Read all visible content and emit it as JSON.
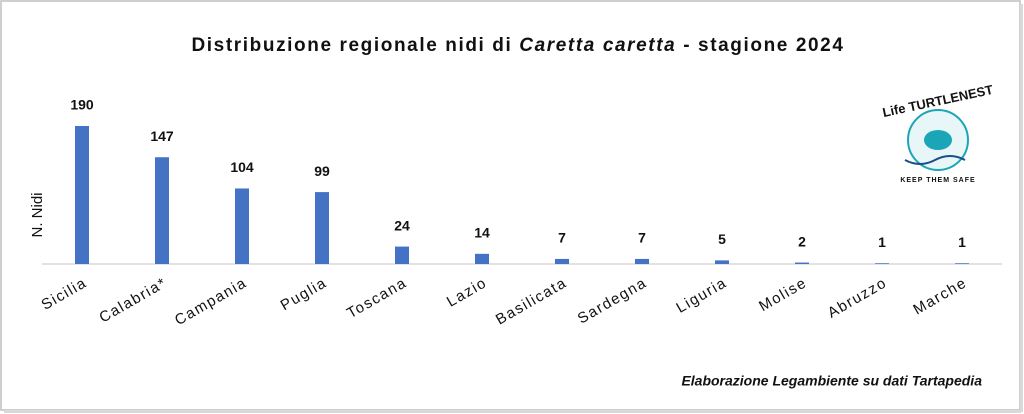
{
  "chart_data": {
    "type": "bar",
    "title": [
      "Distribuzione regionale nidi di ",
      "Caretta caretta",
      " - stagione 2024"
    ],
    "y_label": "N. Nidi",
    "categories": [
      "Sicilia",
      "Calabria*",
      "Campania",
      "Puglia",
      "Toscana",
      "Lazio",
      "Basilicata",
      "Sardegna",
      "Liguria",
      "Molise",
      "Abruzzo",
      "Marche"
    ],
    "values": [
      190,
      147,
      104,
      99,
      24,
      14,
      7,
      7,
      5,
      2,
      1,
      1
    ],
    "color": "#4472c4",
    "ylim": [
      0,
      190
    ],
    "grid": false
  },
  "source": "Elaborazione Legambiente su dati Tartapedia",
  "logo": {
    "name": "Life TURTLENEST",
    "tagline": "KEEP THEM SAFE"
  }
}
